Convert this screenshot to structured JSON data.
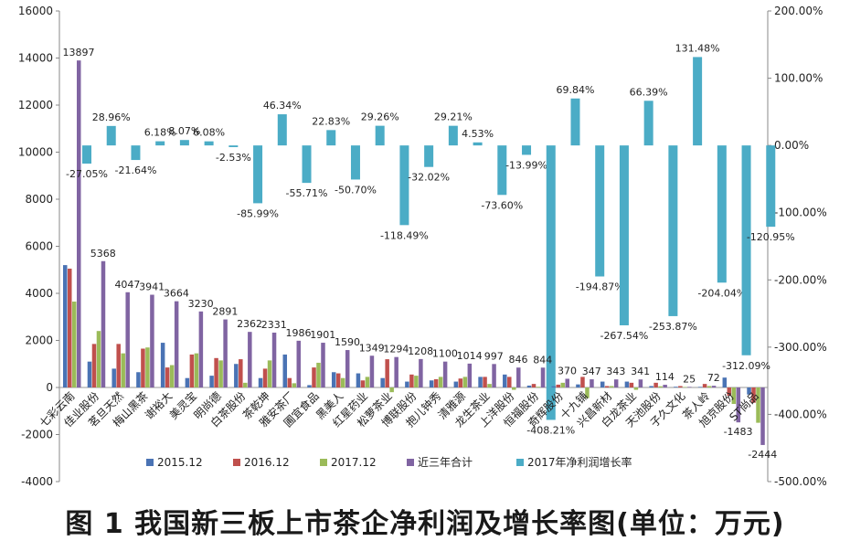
{
  "caption": "图 1   我国新三板上市茶企净利润及增长率图(单位：万元)",
  "chart_data": {
    "type": "bar",
    "title": "",
    "xlabel": "",
    "ylabel": "",
    "ylim": [
      -4000,
      16000
    ],
    "y_ticks": [
      -4000,
      -2000,
      0,
      2000,
      4000,
      6000,
      8000,
      10000,
      12000,
      14000,
      16000
    ],
    "y2lim": [
      -500,
      200
    ],
    "y2_ticks": [
      "-500.00%",
      "-400.00%",
      "-300.00%",
      "-200.00%",
      "-100.00%",
      "0.00%",
      "100.00%",
      "200.00%"
    ],
    "y2_tick_values": [
      -500,
      -400,
      -300,
      -200,
      -100,
      0,
      100,
      200
    ],
    "grid": false,
    "legend_position": "bottom",
    "categories": [
      "七彩云南",
      "佳业股份",
      "茗旦天然",
      "梅山黑茶",
      "谢裕大",
      "美灵宝",
      "明尚德",
      "白茶股份",
      "茶乾坤",
      "雅安茶厂",
      "圃宜食品",
      "黑美人",
      "红星药业",
      "松萝茶业",
      "博联股份",
      "抱儿钟秀",
      "清雅源",
      "龙生茶业",
      "上洋股份",
      "恒福股份",
      "奇辉股份",
      "十九铺",
      "兴昌新材",
      "白龙茶业",
      "天池股份",
      "子久文化",
      "茶人岭",
      "旭京股份",
      "ST尚品"
    ],
    "series": [
      {
        "name": "2015.12",
        "color": "#4a73b4",
        "axis": "left",
        "values": [
          5200,
          1100,
          800,
          650,
          1900,
          400,
          500,
          1000,
          400,
          1400,
          100,
          650,
          600,
          400,
          250,
          300,
          250,
          450,
          550,
          80,
          50,
          130,
          250,
          250,
          60,
          30,
          25,
          420,
          -300
        ]
      },
      {
        "name": "2016.12",
        "color": "#c0504d",
        "axis": "left",
        "values": [
          5050,
          1850,
          1850,
          1650,
          850,
          1400,
          1250,
          1200,
          800,
          400,
          850,
          600,
          300,
          1200,
          550,
          350,
          380,
          450,
          450,
          150,
          120,
          450,
          60,
          200,
          200,
          60,
          150,
          -350,
          -650
        ]
      },
      {
        "name": "2017.12",
        "color": "#9bbb59",
        "axis": "left",
        "values": [
          3650,
          2400,
          1450,
          1700,
          950,
          1450,
          1150,
          200,
          1150,
          180,
          1050,
          400,
          450,
          -200,
          500,
          450,
          450,
          150,
          -100,
          30,
          200,
          -450,
          60,
          -100,
          50,
          20,
          60,
          -700,
          -1500
        ]
      },
      {
        "name": "近三年合计",
        "color": "#8064a2",
        "axis": "left",
        "values": [
          13897,
          5368,
          4047,
          3941,
          3664,
          3230,
          2891,
          2362,
          2331,
          1986,
          1901,
          1590,
          1349,
          1294,
          1208,
          1100,
          1014,
          997,
          846,
          844,
          370,
          347,
          343,
          341,
          114,
          25,
          72,
          -1483,
          -2444
        ],
        "labels": [
          "13897",
          "5368",
          "4047",
          "3941",
          "3664",
          "3230",
          "2891",
          "2362",
          "2331",
          "1986",
          "1901",
          "1590",
          "1349",
          "1294",
          "1208",
          "1100",
          "1014",
          "997",
          "846",
          "844",
          "370",
          "347",
          "343",
          "341",
          "114",
          "25",
          "72",
          "-1483",
          "-2444"
        ]
      },
      {
        "name": "2017年净利润增长率",
        "color": "#4bacc6",
        "axis": "right",
        "values": [
          -27.05,
          28.96,
          -21.64,
          6.18,
          8.07,
          6.08,
          -2.53,
          -85.99,
          46.34,
          -55.71,
          22.83,
          -50.7,
          29.26,
          -118.49,
          -32.02,
          29.21,
          4.53,
          -73.6,
          -13.99,
          -408.21,
          69.84,
          -194.87,
          -267.54,
          66.39,
          -253.87,
          131.48,
          -204.04,
          -312.09,
          -120.95
        ],
        "labels": [
          "-27.05%",
          "28.96%",
          "-21.64%",
          "6.18%",
          "8.07%",
          "6.08%",
          "-2.53%",
          "-85.99%",
          "46.34%",
          "-55.71%",
          "22.83%",
          "-50.70%",
          "29.26%",
          "-118.49%",
          "-32.02%",
          "29.21%",
          "4.53%",
          "-73.60%",
          "-13.99%",
          "-408.21%",
          "69.84%",
          "-194.87%",
          "-267.54%",
          "66.39%",
          "-253.87%",
          "131.48%",
          "-204.04%",
          "-312.09%",
          "-120.95%"
        ]
      }
    ]
  }
}
